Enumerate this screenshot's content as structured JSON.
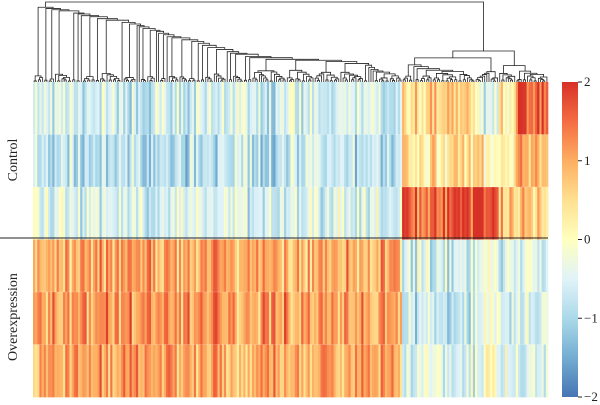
{
  "chart_data": {
    "type": "heatmap",
    "title": "",
    "row_groups": [
      {
        "name": "Control",
        "rows": 3
      },
      {
        "name": "Overexpression",
        "rows": 3
      }
    ],
    "column_clusters": [
      {
        "cluster": 1,
        "fraction": 0.715,
        "profile": [
          -0.6,
          -0.8,
          -0.5,
          1.0,
          1.1,
          1.0
        ]
      },
      {
        "cluster": 2,
        "fraction": 0.14,
        "profile": [
          0.6,
          0.5,
          1.6,
          -0.6,
          -0.7,
          -0.5
        ]
      },
      {
        "cluster": 3,
        "fraction": 0.045,
        "profile": [
          -0.3,
          0.4,
          2.0,
          -0.3,
          -0.4,
          -0.3
        ]
      },
      {
        "cluster": 4,
        "fraction": 0.035,
        "profile": [
          0.2,
          0.2,
          0.8,
          -0.5,
          -0.5,
          -0.4
        ]
      },
      {
        "cluster": 5,
        "fraction": 0.065,
        "profile": [
          1.7,
          0.9,
          0.6,
          -0.4,
          -0.5,
          -0.5
        ]
      }
    ],
    "colorbar": {
      "min": -2,
      "max": 2,
      "ticks": [
        "2",
        "1",
        "0",
        "−1",
        "−2"
      ],
      "colors": [
        "#d73027",
        "#f46d43",
        "#fdae61",
        "#fee090",
        "#ffffbf",
        "#e0f3f8",
        "#abd9e9",
        "#74add1",
        "#4575b4"
      ]
    },
    "dendrogram": "hierarchical clustering of columns"
  }
}
